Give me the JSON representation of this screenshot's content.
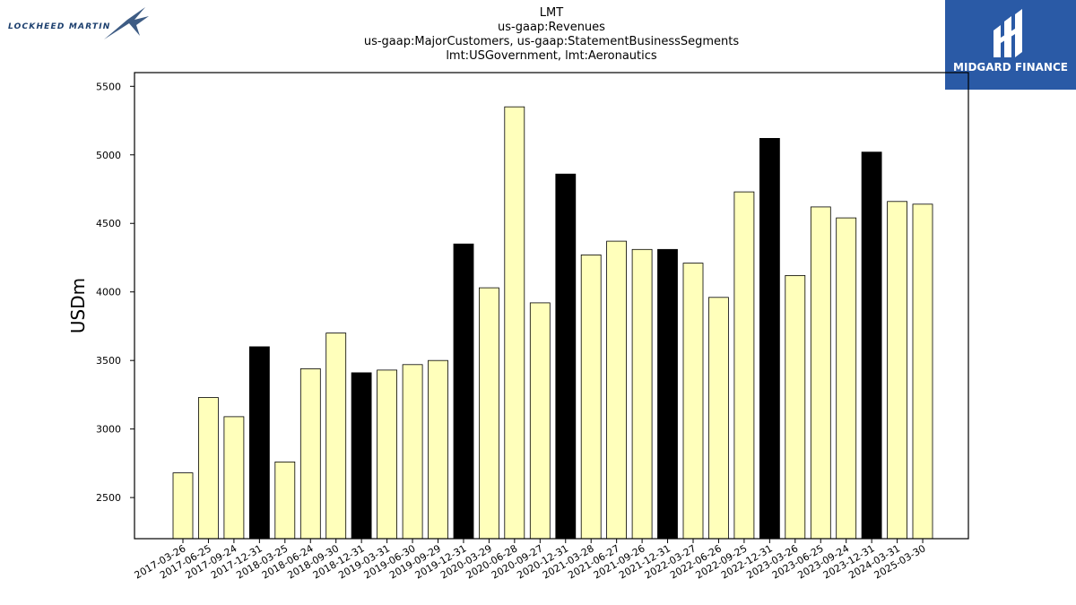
{
  "header": {
    "title_lines": [
      "LMT",
      "us-gaap:Revenues",
      "us-gaap:MajorCustomers, us-gaap:StatementBusinessSegments",
      "lmt:USGovernment, lmt:Aeronautics"
    ]
  },
  "logos": {
    "left_company": "LOCKHEED MARTIN",
    "right_brand": "MIDGARD FINANCE",
    "right_brand_bg": "#2a5aa6"
  },
  "chart_data": {
    "type": "bar",
    "title": "LMT\nus-gaap:Revenues\nus-gaap:MajorCustomers, us-gaap:StatementBusinessSegments\nlmt:USGovernment, lmt:Aeronautics",
    "xlabel": "",
    "ylabel": "USDm",
    "ylim": [
      2200,
      5600
    ],
    "yticks": [
      2500,
      3000,
      3500,
      4000,
      4500,
      5000,
      5500
    ],
    "grid": false,
    "categories": [
      "2017-03-26",
      "2017-06-25",
      "2017-09-24",
      "2017-12-31",
      "2018-03-25",
      "2018-06-24",
      "2018-09-30",
      "2018-12-31",
      "2019-03-31",
      "2019-06-30",
      "2019-09-29",
      "2019-12-31",
      "2020-03-29",
      "2020-06-28",
      "2020-09-27",
      "2020-12-31",
      "2021-03-28",
      "2021-06-27",
      "2021-09-26",
      "2021-12-31",
      "2022-03-27",
      "2022-06-26",
      "2022-09-25",
      "2022-12-31",
      "2023-03-26",
      "2023-06-25",
      "2023-09-24",
      "2023-12-31",
      "2024-03-31",
      "2025-03-30"
    ],
    "values": [
      2680,
      3230,
      3090,
      3600,
      2760,
      3440,
      3700,
      3410,
      3430,
      3470,
      3500,
      4350,
      4030,
      5350,
      3920,
      4860,
      4270,
      4370,
      4310,
      4310,
      4210,
      3960,
      4730,
      5120,
      4120,
      4620,
      4540,
      5020,
      4660,
      4640
    ],
    "bar_colors": {
      "quarter": "#ffffbb",
      "year_end": "#000000"
    },
    "year_end_flags": [
      false,
      false,
      false,
      true,
      false,
      false,
      false,
      true,
      false,
      false,
      false,
      true,
      false,
      false,
      false,
      true,
      false,
      false,
      false,
      true,
      false,
      false,
      false,
      true,
      false,
      false,
      false,
      true,
      false,
      false
    ]
  }
}
